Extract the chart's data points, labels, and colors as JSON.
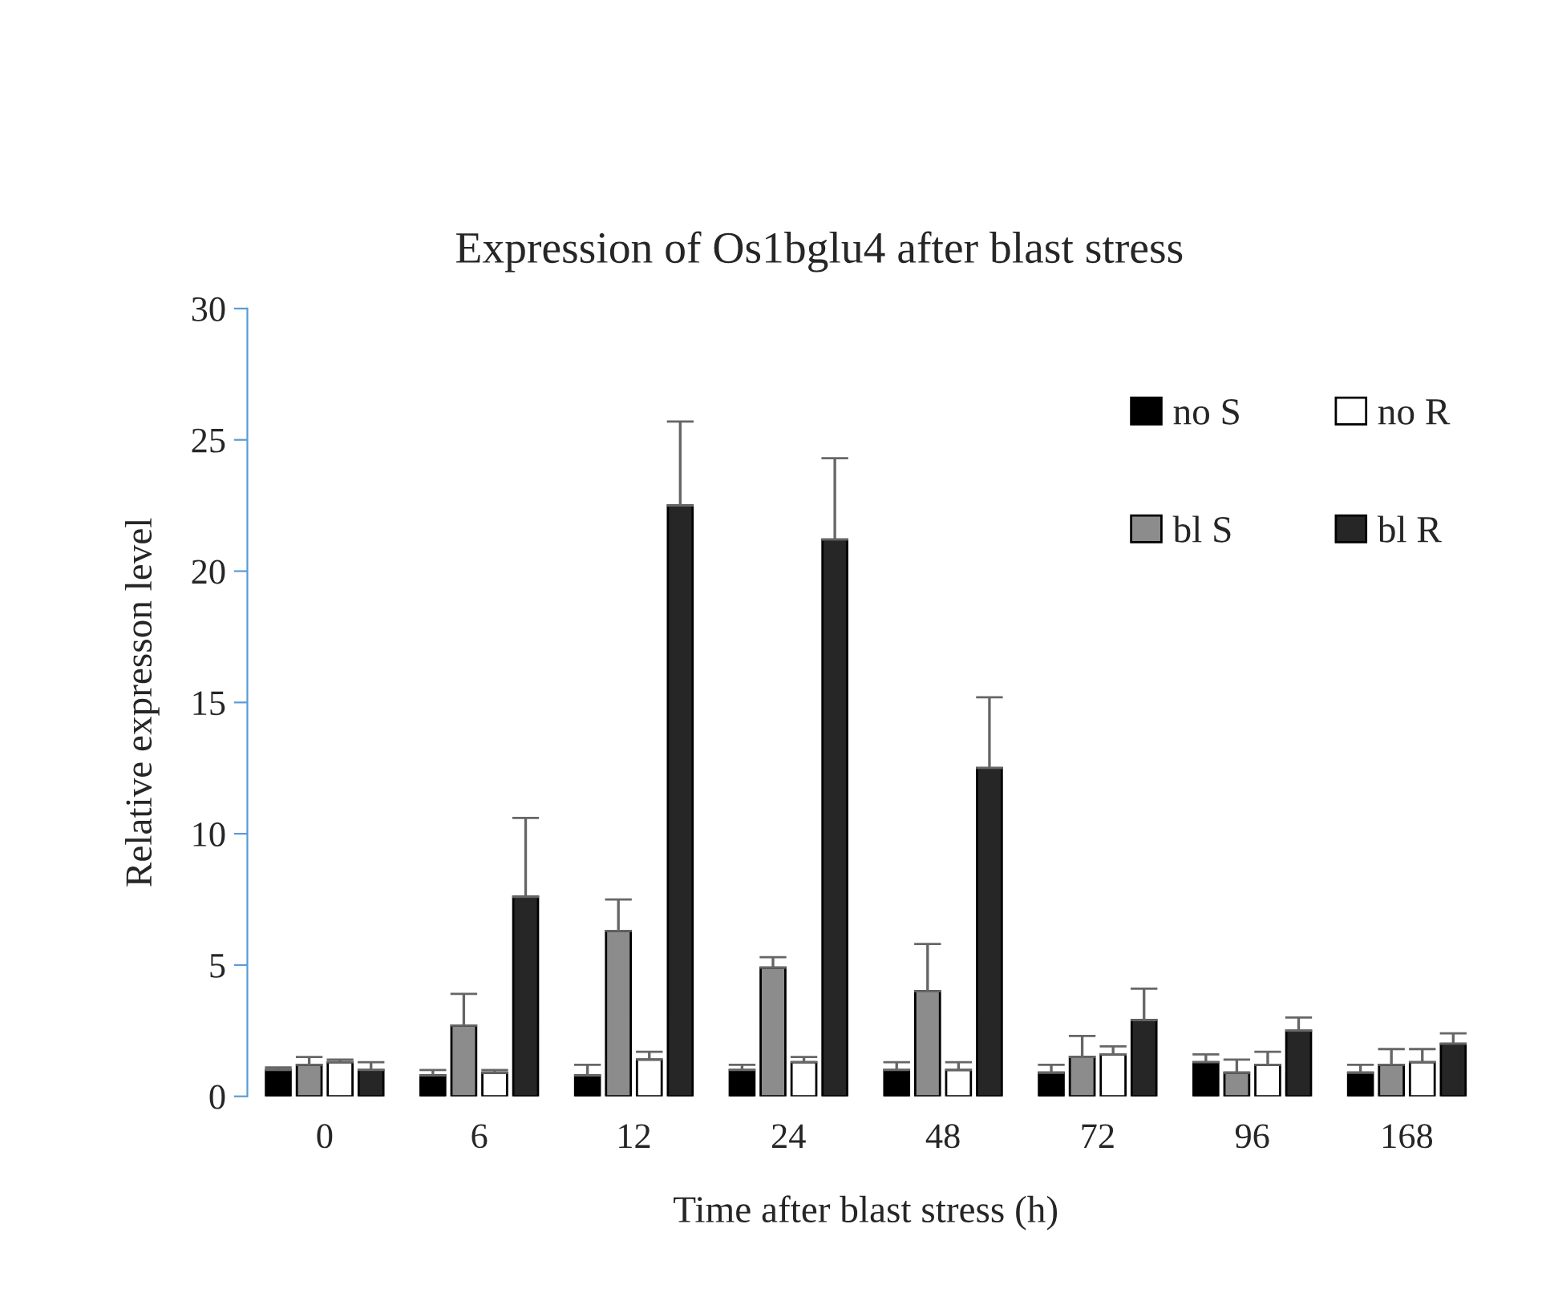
{
  "chart_data": {
    "type": "bar",
    "title": "Expression of Os1bglu4 after blast stress",
    "xlabel": "Time after blast stress (h)",
    "ylabel": "Relative expresson level",
    "categories": [
      "0",
      "6",
      "12",
      "24",
      "48",
      "72",
      "96",
      "168"
    ],
    "series": [
      {
        "name": "no S",
        "color": "#000000",
        "values": [
          1.0,
          0.8,
          0.8,
          1.0,
          1.0,
          0.9,
          1.3,
          0.9
        ],
        "errors": [
          0.1,
          0.2,
          0.4,
          0.2,
          0.3,
          0.3,
          0.3,
          0.3
        ]
      },
      {
        "name": "bl S",
        "color": "#8c8c8c",
        "values": [
          1.2,
          2.7,
          6.3,
          4.9,
          4.0,
          1.5,
          0.9,
          1.2
        ],
        "errors": [
          0.3,
          1.2,
          1.2,
          0.4,
          1.8,
          0.8,
          0.5,
          0.6
        ]
      },
      {
        "name": "no R",
        "color": "#ffffff",
        "values": [
          1.3,
          0.9,
          1.4,
          1.3,
          1.0,
          1.6,
          1.2,
          1.3
        ],
        "errors": [
          0.1,
          0.1,
          0.3,
          0.2,
          0.3,
          0.3,
          0.5,
          0.5
        ]
      },
      {
        "name": "bl R",
        "color": "#262626",
        "values": [
          1.0,
          7.6,
          22.5,
          21.2,
          12.5,
          2.9,
          2.5,
          2.0
        ],
        "errors": [
          0.3,
          3.0,
          3.2,
          3.1,
          2.7,
          1.2,
          0.5,
          0.4
        ]
      }
    ],
    "ylim": [
      0,
      30
    ],
    "yticks": [
      0,
      5,
      10,
      15,
      20,
      25,
      30
    ],
    "grid": false,
    "legend": "top right"
  }
}
